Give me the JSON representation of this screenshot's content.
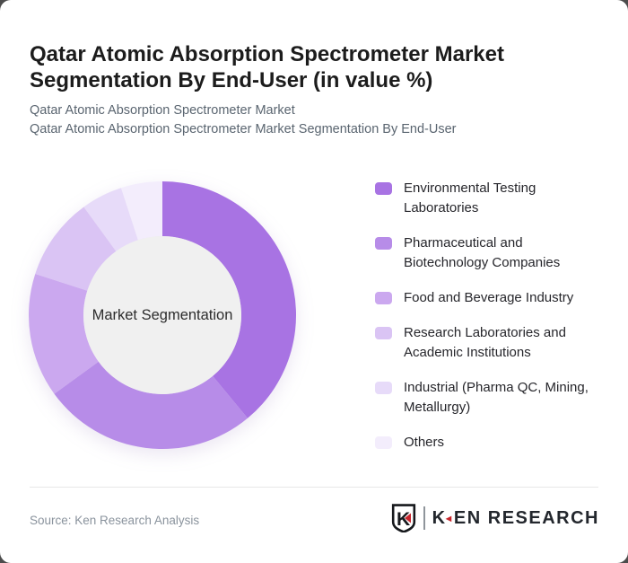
{
  "header": {
    "title": "Qatar Atomic Absorption Spectrometer Market Segmentation By End-User (in value %)",
    "subtitle_line1": "Qatar Atomic Absorption Spectrometer Market",
    "subtitle_line2": "Qatar Atomic Absorption Spectrometer Market Segmentation By End-User"
  },
  "chart_data": {
    "type": "pie",
    "variant": "donut",
    "title": "Qatar Atomic Absorption Spectrometer Market Segmentation By End-User (in value %)",
    "center_label": "Market Segmentation",
    "unit": "%",
    "start_angle_deg": 0,
    "direction": "clockwise",
    "legend_position": "right",
    "categories": [
      "Environmental Testing Laboratories",
      "Pharmaceutical and Biotechnology Companies",
      "Food and Beverage Industry",
      "Research Laboratories and Academic Institutions",
      "Industrial (Pharma QC, Mining, Metallurgy)",
      "Others"
    ],
    "values": [
      39,
      26,
      15,
      10,
      5,
      5
    ],
    "colors": [
      "#a873e3",
      "#b78ce8",
      "#cba8ef",
      "#dac4f4",
      "#e7dbf9",
      "#f3edfc"
    ],
    "center_fill": "#f0f0f0"
  },
  "footer": {
    "source": "Source: Ken Research Analysis",
    "logo_brand_k": "K",
    "logo_brand_rest": "EN RESEARCH",
    "logo_triangle": "◄",
    "logo_red": "#c8242b"
  }
}
